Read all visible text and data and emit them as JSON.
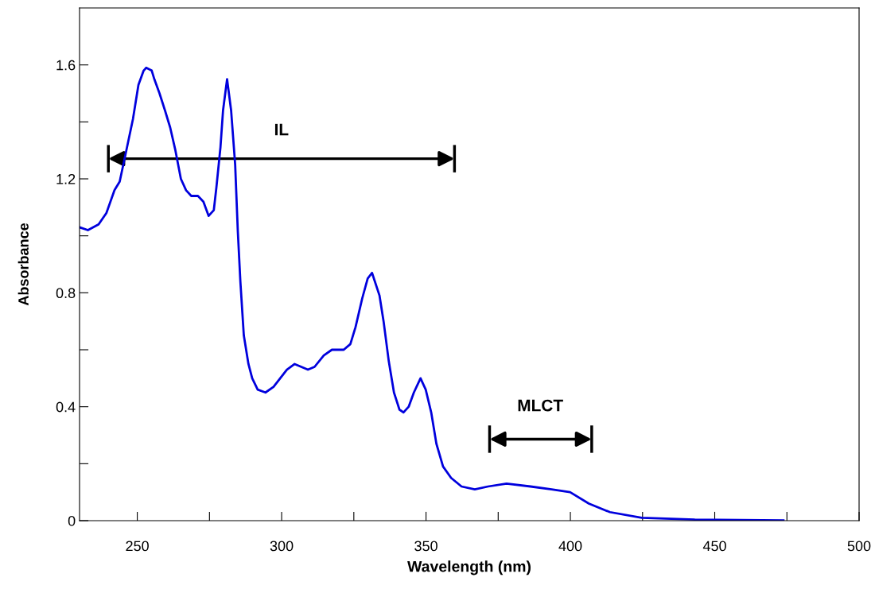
{
  "chart_data": {
    "type": "line",
    "xlabel": "Wavelength (nm)",
    "ylabel": "Absorbance",
    "x": [
      230,
      232.9,
      236.6,
      239.3,
      242.1,
      243.9,
      245.8,
      248.5,
      250.4,
      252.2,
      253.1,
      255,
      255.9,
      257.7,
      259.6,
      261.4,
      263.2,
      265.1,
      266.9,
      268.7,
      271,
      272.9,
      274.7,
      276.5,
      277.4,
      278.8,
      279.7,
      281.1,
      282.5,
      283.9,
      284.8,
      285.7,
      286.9,
      288.5,
      289.8,
      291.7,
      294.4,
      297.2,
      299.5,
      301.8,
      304.5,
      309.1,
      311.4,
      314.6,
      317.4,
      321.5,
      323.8,
      325.6,
      327.9,
      329.8,
      331.3,
      333.9,
      335.3,
      337.1,
      338.9,
      340.8,
      342.2,
      344,
      345.8,
      348.1,
      349.9,
      351.8,
      353.6,
      355.9,
      358.7,
      362.3,
      366.9,
      371.5,
      377.9,
      386.2,
      393.5,
      399.9,
      406.4,
      413.7,
      424.7,
      443.1,
      473.8
    ],
    "series": [
      {
        "color": "#0000dd",
        "values": [
          1.03,
          1.02,
          1.04,
          1.08,
          1.16,
          1.19,
          1.28,
          1.41,
          1.53,
          1.58,
          1.59,
          1.58,
          1.55,
          1.5,
          1.44,
          1.38,
          1.3,
          1.2,
          1.16,
          1.14,
          1.14,
          1.12,
          1.07,
          1.09,
          1.17,
          1.31,
          1.44,
          1.55,
          1.44,
          1.25,
          1.02,
          0.84,
          0.65,
          0.55,
          0.5,
          0.46,
          0.45,
          0.47,
          0.5,
          0.53,
          0.55,
          0.53,
          0.54,
          0.58,
          0.6,
          0.6,
          0.62,
          0.68,
          0.78,
          0.85,
          0.87,
          0.79,
          0.7,
          0.56,
          0.45,
          0.39,
          0.38,
          0.4,
          0.45,
          0.5,
          0.46,
          0.38,
          0.27,
          0.19,
          0.15,
          0.12,
          0.11,
          0.12,
          0.13,
          0.12,
          0.11,
          0.1,
          0.06,
          0.03,
          0.01,
          0.004,
          0.001
        ]
      }
    ],
    "xlim": [
      230,
      500
    ],
    "ylim": [
      0,
      1.8
    ],
    "xticks": [
      250,
      {
        "value": 275,
        "label": null
      },
      300,
      {
        "value": 325,
        "label": null
      },
      350,
      {
        "value": 375,
        "label": null
      },
      400,
      {
        "value": 425,
        "label": null
      },
      450,
      {
        "value": 475,
        "label": null
      },
      500
    ],
    "yticks": [
      0,
      {
        "value": 0.2,
        "label": null
      },
      0.4,
      {
        "value": 0.6,
        "label": null
      },
      0.8,
      {
        "value": 1.0,
        "label": null
      },
      1.2,
      {
        "value": 1.4,
        "label": null
      },
      1.6
    ],
    "grid": false,
    "marker": "none",
    "line_style": "solid",
    "annotations": [
      "IL",
      "MLCT"
    ]
  }
}
